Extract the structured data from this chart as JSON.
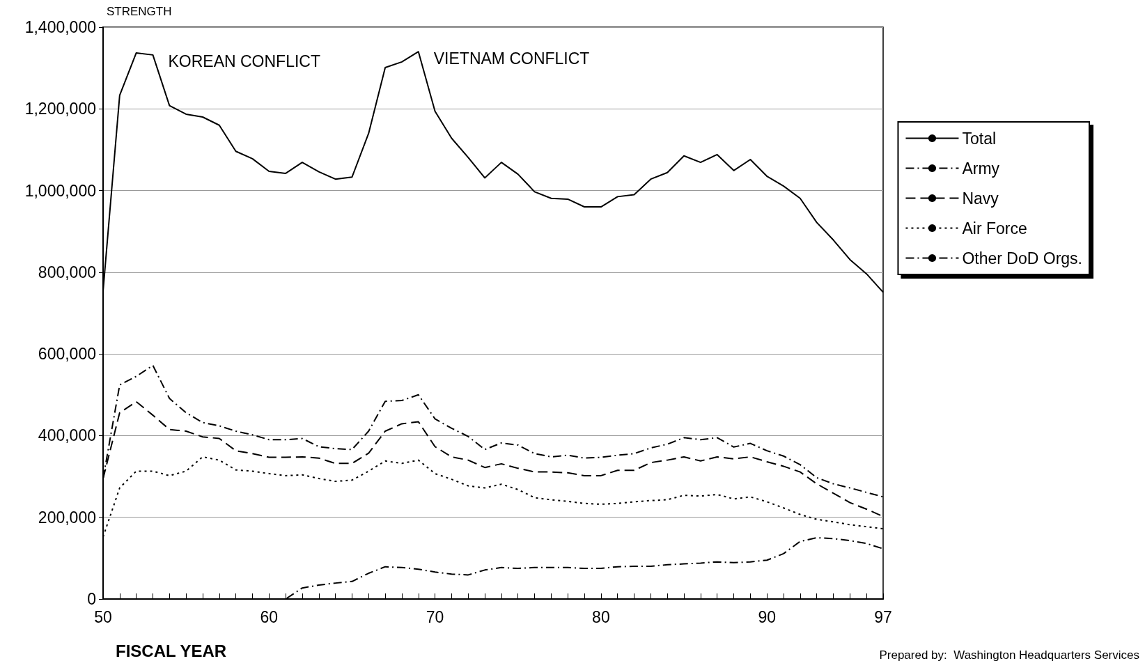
{
  "chart_data": {
    "type": "line",
    "ylabel": "STRENGTH",
    "xlabel": "FISCAL YEAR",
    "x": [
      50,
      51,
      52,
      53,
      54,
      55,
      56,
      57,
      58,
      59,
      60,
      61,
      62,
      63,
      64,
      65,
      66,
      67,
      68,
      69,
      70,
      71,
      72,
      73,
      74,
      75,
      76,
      77,
      78,
      79,
      80,
      81,
      82,
      83,
      84,
      85,
      86,
      87,
      88,
      89,
      90,
      91,
      92,
      93,
      94,
      95,
      96,
      97
    ],
    "series": [
      {
        "name": "Total",
        "color": "#000000",
        "line_style": "solid",
        "values": [
          754000,
          1233000,
          1337000,
          1332000,
          1208000,
          1187000,
          1180000,
          1160000,
          1096000,
          1078000,
          1047000,
          1042000,
          1069000,
          1046000,
          1028000,
          1033000,
          1140000,
          1301000,
          1315000,
          1340000,
          1194000,
          1128000,
          1081000,
          1031000,
          1069000,
          1040000,
          997000,
          981000,
          979000,
          960000,
          960000,
          985000,
          990000,
          1028000,
          1044000,
          1085000,
          1069000,
          1088000,
          1049000,
          1076000,
          1035000,
          1011000,
          981000,
          922000,
          879000,
          831000,
          796000,
          751000
        ]
      },
      {
        "name": "Army",
        "color": "#000000",
        "line_style": "dashdot",
        "values": [
          295000,
          524000,
          545000,
          572000,
          491000,
          456000,
          432000,
          424000,
          411000,
          402000,
          390000,
          390000,
          393000,
          373000,
          368000,
          366000,
          411000,
          484000,
          486000,
          500000,
          441000,
          418000,
          398000,
          366000,
          382000,
          377000,
          356000,
          348000,
          352000,
          345000,
          347000,
          352000,
          356000,
          370000,
          379000,
          395000,
          390000,
          395000,
          372000,
          381000,
          363000,
          350000,
          329000,
          297000,
          282000,
          272000,
          261000,
          250000
        ]
      },
      {
        "name": "Navy",
        "color": "#000000",
        "line_style": "dashed",
        "values": [
          295000,
          456000,
          483000,
          450000,
          415000,
          411000,
          397000,
          393000,
          363000,
          356000,
          347000,
          347000,
          348000,
          345000,
          332000,
          332000,
          357000,
          411000,
          429000,
          434000,
          373000,
          348000,
          340000,
          322000,
          331000,
          320000,
          311000,
          311000,
          309000,
          302000,
          302000,
          315000,
          315000,
          334000,
          340000,
          348000,
          338000,
          348000,
          343000,
          348000,
          336000,
          325000,
          311000,
          282000,
          259000,
          236000,
          220000,
          202000
        ]
      },
      {
        "name": "Air Force",
        "color": "#000000",
        "line_style": "dotted",
        "values": [
          152000,
          272000,
          313000,
          313000,
          302000,
          313000,
          348000,
          340000,
          316000,
          313000,
          307000,
          302000,
          304000,
          295000,
          288000,
          291000,
          313000,
          338000,
          332000,
          340000,
          307000,
          293000,
          277000,
          272000,
          281000,
          268000,
          248000,
          243000,
          239000,
          234000,
          232000,
          234000,
          238000,
          241000,
          243000,
          254000,
          252000,
          256000,
          245000,
          250000,
          238000,
          223000,
          207000,
          195000,
          189000,
          182000,
          177000,
          172000
        ]
      },
      {
        "name": "Other DoD Orgs.",
        "color": "#000000",
        "line_style": "dashdot",
        "values": [
          0,
          0,
          0,
          0,
          0,
          0,
          0,
          0,
          0,
          0,
          0,
          0,
          27000,
          34000,
          39000,
          43000,
          63000,
          79000,
          77000,
          73000,
          66000,
          61000,
          59000,
          71000,
          77000,
          75000,
          77000,
          77000,
          77000,
          75000,
          75000,
          79000,
          80000,
          80000,
          84000,
          86000,
          88000,
          91000,
          89000,
          91000,
          95000,
          111000,
          141000,
          150000,
          148000,
          143000,
          136000,
          123000
        ]
      }
    ],
    "xlim": [
      50,
      97
    ],
    "xticks": [
      50,
      {
        "value": 51,
        "label": null
      },
      {
        "value": 52,
        "label": null
      },
      {
        "value": 53,
        "label": null
      },
      {
        "value": 54,
        "label": null
      },
      {
        "value": 55,
        "label": null
      },
      {
        "value": 56,
        "label": null
      },
      {
        "value": 57,
        "label": null
      },
      {
        "value": 58,
        "label": null
      },
      {
        "value": 59,
        "label": null
      },
      60,
      {
        "value": 61,
        "label": null
      },
      {
        "value": 62,
        "label": null
      },
      {
        "value": 63,
        "label": null
      },
      {
        "value": 64,
        "label": null
      },
      {
        "value": 65,
        "label": null
      },
      {
        "value": 66,
        "label": null
      },
      {
        "value": 67,
        "label": null
      },
      {
        "value": 68,
        "label": null
      },
      {
        "value": 69,
        "label": null
      },
      70,
      {
        "value": 71,
        "label": null
      },
      {
        "value": 72,
        "label": null
      },
      {
        "value": 73,
        "label": null
      },
      {
        "value": 74,
        "label": null
      },
      {
        "value": 75,
        "label": null
      },
      {
        "value": 76,
        "label": null
      },
      {
        "value": 77,
        "label": null
      },
      {
        "value": 78,
        "label": null
      },
      {
        "value": 79,
        "label": null
      },
      80,
      {
        "value": 81,
        "label": null
      },
      {
        "value": 82,
        "label": null
      },
      {
        "value": 83,
        "label": null
      },
      {
        "value": 84,
        "label": null
      },
      {
        "value": 85,
        "label": null
      },
      {
        "value": 86,
        "label": null
      },
      {
        "value": 87,
        "label": null
      },
      {
        "value": 88,
        "label": null
      },
      {
        "value": 89,
        "label": null
      },
      90,
      {
        "value": 91,
        "label": null
      },
      {
        "value": 92,
        "label": null
      },
      {
        "value": 93,
        "label": null
      },
      {
        "value": 94,
        "label": null
      },
      {
        "value": 95,
        "label": null
      },
      {
        "value": 96,
        "label": null
      },
      97
    ],
    "ylim": [
      0,
      1400000
    ],
    "yticks": [
      0,
      {
        "value": 200000,
        "label": "200,000"
      },
      {
        "value": 400000,
        "label": "400,000"
      },
      {
        "value": 600000,
        "label": "600,000"
      },
      {
        "value": 800000,
        "label": "800,000"
      },
      {
        "value": 1000000,
        "label": "1,000,000"
      },
      {
        "value": 1200000,
        "label": "1,200,000"
      },
      {
        "value": 1400000,
        "label": "1,400,000"
      }
    ],
    "grid": "y",
    "legend": "right",
    "marker": "none",
    "annotations": [
      {
        "text": "KOREAN CONFLICT",
        "x": 53,
        "y": 1332000
      },
      {
        "text": "VIETNAM CONFLICT",
        "x": 69,
        "y": 1340000
      },
      "Prepared by:  Washington Headquarters Services"
    ]
  }
}
